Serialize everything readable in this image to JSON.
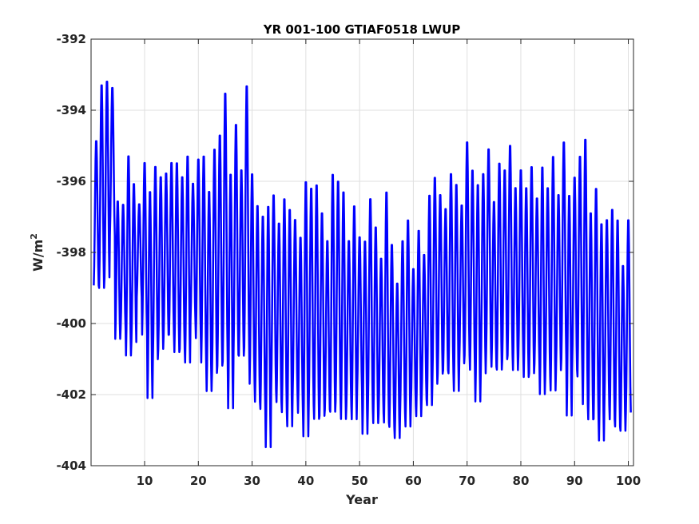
{
  "chart_data": {
    "type": "line",
    "title": "YR 001-100 GTIAF0518 LWUP",
    "xlabel": "Year",
    "ylabel_base": "W/m",
    "ylabel_sup": "2",
    "xlim": [
      0.04,
      100.96
    ],
    "ylim": [
      -404,
      -392
    ],
    "x_ticks": [
      10,
      20,
      30,
      40,
      50,
      60,
      70,
      80,
      90,
      100
    ],
    "y_ticks": [
      -392,
      -394,
      -396,
      -398,
      -400,
      -402,
      -404
    ],
    "grid": true,
    "line_color": "#0000ff",
    "series": [
      {
        "sampling": "monthly, years 1-100",
        "annual_max": [
          -394.8,
          -393.2,
          -393.1,
          -393.3,
          -396.5,
          -396.6,
          -395.2,
          -396.0,
          -396.6,
          -395.4,
          -396.2,
          -395.5,
          -395.8,
          -395.7,
          -395.4,
          -395.4,
          -395.8,
          -395.2,
          -396.0,
          -395.3,
          -395.2,
          -396.2,
          -395.0,
          -394.6,
          -393.4,
          -395.7,
          -394.3,
          -395.6,
          -393.2,
          -395.7,
          -396.6,
          -396.9,
          -396.6,
          -396.3,
          -397.1,
          -396.4,
          -396.7,
          -397.0,
          -397.5,
          -395.9,
          -396.1,
          -396.0,
          -396.8,
          -397.6,
          -395.7,
          -395.9,
          -396.2,
          -397.6,
          -396.6,
          -397.5,
          -397.6,
          -396.4,
          -397.2,
          -398.1,
          -396.2,
          -397.7,
          -398.8,
          -397.6,
          -397.0,
          -398.4,
          -397.3,
          -398.0,
          -396.3,
          -395.8,
          -396.3,
          -396.7,
          -395.7,
          -396.0,
          -396.6,
          -394.8,
          -395.6,
          -396.0,
          -395.7,
          -395.0,
          -396.5,
          -395.4,
          -395.6,
          -394.9,
          -396.1,
          -395.6,
          -396.1,
          -395.5,
          -396.4,
          -395.5,
          -396.1,
          -395.2,
          -396.3,
          -394.8,
          -396.3,
          -395.8,
          -395.2,
          -394.7,
          -396.8,
          -396.1,
          -397.1,
          -397.0,
          -396.7,
          -397.0,
          -398.3,
          -397.0
        ],
        "annual_min": [
          -399.0,
          -399.1,
          -398.8,
          -397.6,
          -400.5,
          -400.2,
          -401.0,
          -400.6,
          -399.3,
          -400.4,
          -402.2,
          -401.1,
          -400.8,
          -400.4,
          -400.4,
          -400.9,
          -400.8,
          -401.2,
          -400.0,
          -400.5,
          -401.2,
          -402.0,
          -401.5,
          -401.3,
          -401.2,
          -402.5,
          -401.0,
          -401.0,
          -400.8,
          -401.8,
          -402.3,
          -402.5,
          -403.6,
          -402.0,
          -402.3,
          -402.6,
          -403.0,
          -402.1,
          -402.6,
          -403.3,
          -402.4,
          -402.8,
          -402.7,
          -402.5,
          -402.6,
          -402.3,
          -402.8,
          -402.4,
          -402.8,
          -402.0,
          -403.2,
          -402.5,
          -402.9,
          -402.6,
          -402.9,
          -403.0,
          -403.3,
          -402.6,
          -403.0,
          -402.4,
          -402.7,
          -402.2,
          -402.4,
          -401.8,
          -401.5,
          -401.4,
          -401.5,
          -402.0,
          -401.2,
          -401.0,
          -401.4,
          -402.3,
          -401.5,
          -400.9,
          -401.3,
          -401.4,
          -401.1,
          -401.0,
          -401.4,
          -401.0,
          -401.6,
          -401.5,
          -401.2,
          -402.1,
          -401.6,
          -402.0,
          -401.4,
          -401.1,
          -402.7,
          -401.4,
          -401.6,
          -402.4,
          -402.8,
          -402.8,
          -403.4,
          -402.4,
          -402.8,
          -403.0,
          -403.1,
          -402.6
        ]
      }
    ]
  }
}
